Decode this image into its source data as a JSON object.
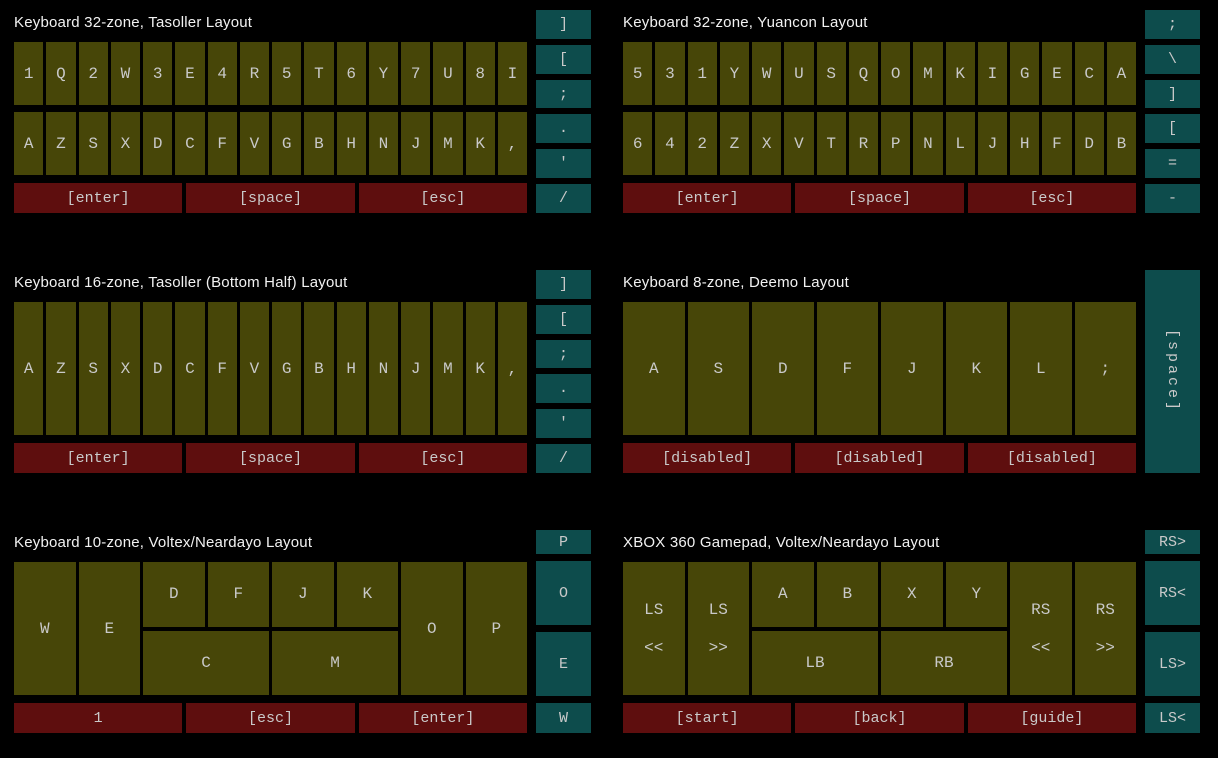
{
  "colors": {
    "background": "#000000",
    "zone_key": "#474608",
    "action_key": "#5e0e0e",
    "air_key": "#0d4c4c",
    "key_label": "#c9c9c9",
    "title_text": "#f2f2f2"
  },
  "panels": [
    {
      "title": "Keyboard 32-zone, Tasoller Layout",
      "row1": [
        "1",
        "Q",
        "2",
        "W",
        "3",
        "E",
        "4",
        "R",
        "5",
        "T",
        "6",
        "Y",
        "7",
        "U",
        "8",
        "I"
      ],
      "row2": [
        "A",
        "Z",
        "S",
        "X",
        "D",
        "C",
        "F",
        "V",
        "G",
        "B",
        "H",
        "N",
        "J",
        "M",
        "K",
        ","
      ],
      "bottom": [
        "[enter]",
        "[space]",
        "[esc]"
      ],
      "sidebar": [
        "]",
        "[",
        ";",
        ".",
        "'",
        "/"
      ]
    },
    {
      "title": "Keyboard 32-zone, Yuancon Layout",
      "row1": [
        "5",
        "3",
        "1",
        "Y",
        "W",
        "U",
        "S",
        "Q",
        "O",
        "M",
        "K",
        "I",
        "G",
        "E",
        "C",
        "A"
      ],
      "row2": [
        "6",
        "4",
        "2",
        "Z",
        "X",
        "V",
        "T",
        "R",
        "P",
        "N",
        "L",
        "J",
        "H",
        "F",
        "D",
        "B"
      ],
      "bottom": [
        "[enter]",
        "[space]",
        "[esc]"
      ],
      "sidebar": [
        ";",
        "\\",
        "]",
        "[",
        "=",
        "-"
      ]
    },
    {
      "title": "Keyboard 16-zone, Tasoller (Bottom Half) Layout",
      "row1": [
        "A",
        "Z",
        "S",
        "X",
        "D",
        "C",
        "F",
        "V",
        "G",
        "B",
        "H",
        "N",
        "J",
        "M",
        "K",
        ","
      ],
      "bottom": [
        "[enter]",
        "[space]",
        "[esc]"
      ],
      "sidebar": [
        "]",
        "[",
        ";",
        ".",
        "'",
        "/"
      ]
    },
    {
      "title": "Keyboard 8-zone, Deemo Layout",
      "row1": [
        "A",
        "S",
        "D",
        "F",
        "J",
        "K",
        "L",
        ";"
      ],
      "bottom": [
        "[disabled]",
        "[disabled]",
        "[disabled]"
      ],
      "sidebar_tall": "[space]"
    },
    {
      "title": "Keyboard 10-zone, Voltex/Neardayo Layout",
      "left": [
        "W",
        "E"
      ],
      "top": [
        "D",
        "F",
        "J",
        "K"
      ],
      "wide": [
        "C",
        "M"
      ],
      "right": [
        "O",
        "P"
      ],
      "bottom": [
        "1",
        "[esc]",
        "[enter]"
      ],
      "sidebar": [
        "P",
        "O",
        "E",
        "W"
      ]
    },
    {
      "title": "XBOX 360 Gamepad, Voltex/Neardayo Layout",
      "left": [
        {
          "l1": "LS",
          "l2": "<<"
        },
        {
          "l1": "LS",
          "l2": ">>"
        }
      ],
      "top": [
        "A",
        "B",
        "X",
        "Y"
      ],
      "wide": [
        "LB",
        "RB"
      ],
      "right": [
        {
          "l1": "RS",
          "l2": "<<"
        },
        {
          "l1": "RS",
          "l2": ">>"
        }
      ],
      "bottom": [
        "[start]",
        "[back]",
        "[guide]"
      ],
      "sidebar": [
        "RS>",
        "RS<",
        "LS>",
        "LS<"
      ]
    }
  ]
}
